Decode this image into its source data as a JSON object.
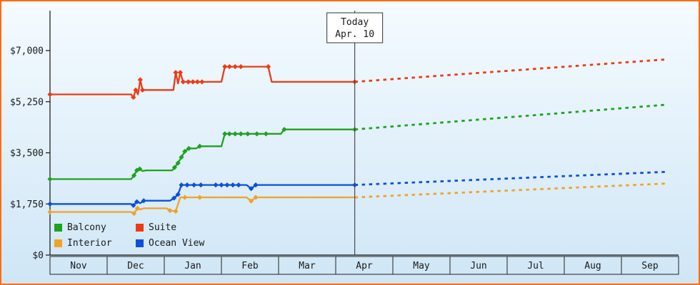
{
  "theme": {
    "frame_border": "#ff6d12",
    "background_top": "#f5fbff",
    "background_bottom": "#cfe6f6",
    "axis_color": "#111111",
    "text_color": "#1a1a1a",
    "today_line_color": "#4a4a55",
    "today_box_fill": "#ffffff",
    "today_box_border": "#333333"
  },
  "chart_data": {
    "type": "line",
    "description": "Cruise cabin price history by category with dashed forecast after today marker",
    "x_categories": [
      "Nov",
      "Dec",
      "Jan",
      "Feb",
      "Mar",
      "Apr",
      "May",
      "Jun",
      "Jul",
      "Aug",
      "Sep"
    ],
    "y_ticks": [
      {
        "value": 0,
        "label": "$0"
      },
      {
        "value": 1750,
        "label": "$1,750"
      },
      {
        "value": 3500,
        "label": "$3,500"
      },
      {
        "value": 5250,
        "label": "$5,250"
      },
      {
        "value": 7000,
        "label": "$7,000"
      }
    ],
    "ylim": [
      0,
      8400
    ],
    "xlim_months": [
      0,
      11
    ],
    "grid": false,
    "legend_position": "bottom-left",
    "today_marker": {
      "line1": "Today",
      "line2": "Apr. 10",
      "x": 5.333
    },
    "legend": [
      "Balcony",
      "Suite",
      "Interior",
      "Ocean View"
    ],
    "series": [
      {
        "name": "Interior",
        "color": "#efa428",
        "history": [
          [
            0,
            1475
          ],
          [
            1.42,
            1475
          ],
          [
            1.47,
            1425
          ],
          [
            1.53,
            1600
          ],
          [
            1.58,
            1560
          ],
          [
            1.64,
            1600
          ],
          [
            2.04,
            1600
          ],
          [
            2.1,
            1525
          ],
          [
            2.2,
            1500
          ],
          [
            2.28,
            1975
          ],
          [
            3.44,
            1975
          ],
          [
            3.52,
            1850
          ],
          [
            3.6,
            1975
          ],
          [
            5.333,
            1975
          ]
        ],
        "forecast": [
          [
            5.333,
            1975
          ],
          [
            10.8,
            2450
          ]
        ],
        "markers": [
          [
            0,
            1475
          ],
          [
            1.47,
            1425
          ],
          [
            1.53,
            1600
          ],
          [
            2.1,
            1525
          ],
          [
            2.2,
            1500
          ],
          [
            2.36,
            1975
          ],
          [
            2.62,
            1975
          ],
          [
            3.52,
            1850
          ],
          [
            3.6,
            1975
          ]
        ]
      },
      {
        "name": "Ocean View",
        "color": "#0d4fd8",
        "history": [
          [
            0,
            1750
          ],
          [
            1.42,
            1750
          ],
          [
            1.46,
            1700
          ],
          [
            1.52,
            1825
          ],
          [
            1.58,
            1775
          ],
          [
            1.64,
            1860
          ],
          [
            2.1,
            1860
          ],
          [
            2.17,
            1950
          ],
          [
            2.24,
            2075
          ],
          [
            2.3,
            2400
          ],
          [
            3.44,
            2400
          ],
          [
            3.52,
            2275
          ],
          [
            3.6,
            2400
          ],
          [
            5.333,
            2400
          ]
        ],
        "forecast": [
          [
            5.333,
            2400
          ],
          [
            10.8,
            2850
          ]
        ],
        "markers": [
          [
            0,
            1750
          ],
          [
            1.46,
            1700
          ],
          [
            1.52,
            1825
          ],
          [
            1.64,
            1860
          ],
          [
            2.17,
            1950
          ],
          [
            2.24,
            2075
          ],
          [
            2.3,
            2400
          ],
          [
            2.4,
            2400
          ],
          [
            2.52,
            2400
          ],
          [
            2.64,
            2400
          ],
          [
            2.9,
            2400
          ],
          [
            3.0,
            2400
          ],
          [
            3.1,
            2400
          ],
          [
            3.2,
            2400
          ],
          [
            3.3,
            2400
          ],
          [
            3.52,
            2275
          ],
          [
            3.6,
            2400
          ],
          [
            5.333,
            2400
          ]
        ]
      },
      {
        "name": "Balcony",
        "color": "#1ea31e",
        "history": [
          [
            0,
            2600
          ],
          [
            1.42,
            2600
          ],
          [
            1.47,
            2725
          ],
          [
            1.52,
            2900
          ],
          [
            1.57,
            2950
          ],
          [
            1.62,
            2875
          ],
          [
            1.68,
            2900
          ],
          [
            2.14,
            2900
          ],
          [
            2.18,
            3000
          ],
          [
            2.24,
            3150
          ],
          [
            2.3,
            3350
          ],
          [
            2.36,
            3550
          ],
          [
            2.43,
            3650
          ],
          [
            2.56,
            3650
          ],
          [
            2.62,
            3725
          ],
          [
            3.0,
            3725
          ],
          [
            3.06,
            4150
          ],
          [
            4.04,
            4150
          ],
          [
            4.1,
            4300
          ],
          [
            5.333,
            4300
          ]
        ],
        "forecast": [
          [
            5.333,
            4300
          ],
          [
            10.8,
            5150
          ]
        ],
        "markers": [
          [
            0,
            2600
          ],
          [
            1.47,
            2725
          ],
          [
            1.52,
            2900
          ],
          [
            1.57,
            2950
          ],
          [
            2.18,
            3000
          ],
          [
            2.24,
            3150
          ],
          [
            2.3,
            3350
          ],
          [
            2.36,
            3550
          ],
          [
            2.43,
            3650
          ],
          [
            2.62,
            3725
          ],
          [
            3.06,
            4150
          ],
          [
            3.14,
            4150
          ],
          [
            3.24,
            4150
          ],
          [
            3.34,
            4150
          ],
          [
            3.46,
            4150
          ],
          [
            3.62,
            4150
          ],
          [
            3.78,
            4150
          ],
          [
            4.1,
            4300
          ],
          [
            5.333,
            4300
          ]
        ]
      },
      {
        "name": "Suite",
        "color": "#ee3a12",
        "history": [
          [
            0,
            5500
          ],
          [
            1.42,
            5500
          ],
          [
            1.46,
            5400
          ],
          [
            1.5,
            5650
          ],
          [
            1.54,
            5500
          ],
          [
            1.58,
            6000
          ],
          [
            1.62,
            5650
          ],
          [
            2.16,
            5650
          ],
          [
            2.2,
            6250
          ],
          [
            2.24,
            5875
          ],
          [
            2.28,
            6250
          ],
          [
            2.33,
            5930
          ],
          [
            3.0,
            5930
          ],
          [
            3.06,
            6450
          ],
          [
            3.82,
            6450
          ],
          [
            3.88,
            5930
          ],
          [
            5.333,
            5930
          ]
        ],
        "forecast": [
          [
            5.333,
            5930
          ],
          [
            10.8,
            6700
          ]
        ],
        "markers": [
          [
            0,
            5500
          ],
          [
            1.46,
            5400
          ],
          [
            1.5,
            5650
          ],
          [
            1.58,
            6000
          ],
          [
            1.62,
            5650
          ],
          [
            2.2,
            6250
          ],
          [
            2.28,
            6250
          ],
          [
            2.33,
            5930
          ],
          [
            2.42,
            5930
          ],
          [
            2.5,
            5930
          ],
          [
            2.58,
            5930
          ],
          [
            2.66,
            5930
          ],
          [
            3.06,
            6450
          ],
          [
            3.14,
            6450
          ],
          [
            3.24,
            6450
          ],
          [
            3.34,
            6450
          ],
          [
            3.82,
            6450
          ],
          [
            5.333,
            5930
          ]
        ]
      }
    ]
  }
}
